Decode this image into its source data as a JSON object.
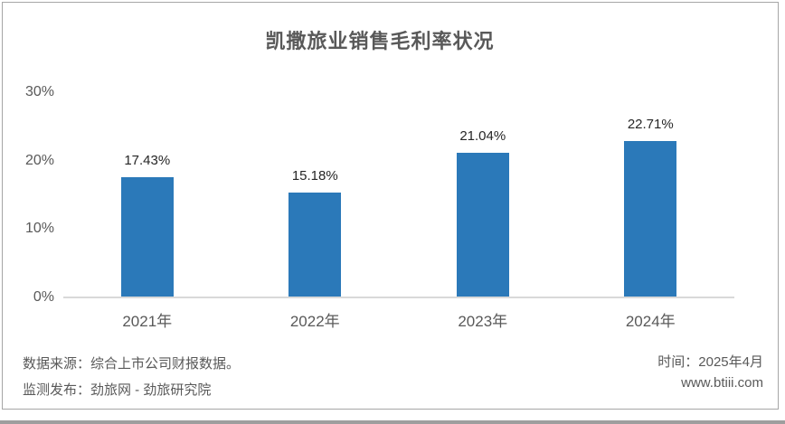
{
  "title": "凯撒旅业销售毛利率状况",
  "chart_data": {
    "type": "bar",
    "title": "凯撒旅业销售毛利率状况",
    "categories": [
      "2021年",
      "2022年",
      "2023年",
      "2024年"
    ],
    "values": [
      17.43,
      15.18,
      21.04,
      22.71
    ],
    "value_labels": [
      "17.43%",
      "15.18%",
      "21.04%",
      "22.71%"
    ],
    "xlabel": "",
    "ylabel": "",
    "ylim": [
      0,
      30
    ],
    "yticks": [
      {
        "label": "30%",
        "value": 30
      },
      {
        "label": "20%",
        "value": 20
      },
      {
        "label": "10%",
        "value": 10
      },
      {
        "label": "0%",
        "value": 0
      }
    ],
    "grid": false,
    "legend": "none",
    "bar_color": "#2B79B9"
  },
  "footer": {
    "source_line": "数据来源：综合上市公司财报数据。",
    "publisher_line": "监测发布：劲旅网 - 劲旅研究院",
    "time_line": "时间：2025年4月",
    "website": "www.btiii.com"
  },
  "colors": {
    "bar": "#2B79B9",
    "axis_line": "#D9D9D9",
    "title_text": "#595959",
    "tick_text": "#595959",
    "data_label_text": "#262626",
    "footer_text": "#595959",
    "card_border": "#A6A6A6",
    "bottom_band": "#9E9E9E"
  }
}
